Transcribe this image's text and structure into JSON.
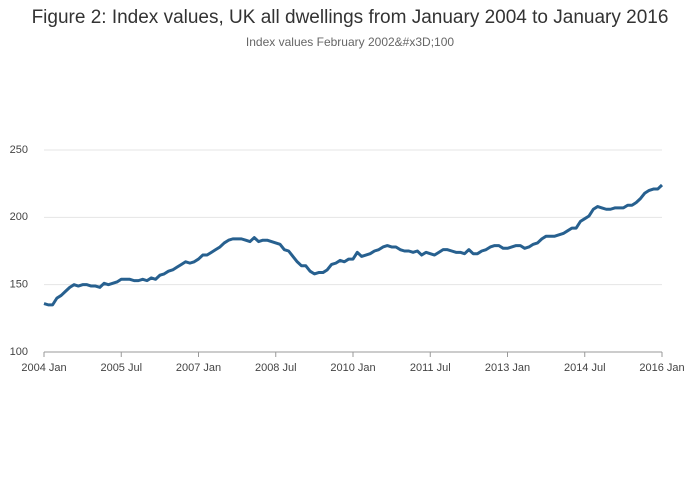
{
  "chart_data": {
    "type": "line",
    "title": "Figure 2: Index values, UK all dwellings from January 2004 to January 2016",
    "subtitle": "Index values February 2002&#x3D;100",
    "color": "#27608f",
    "x": [
      "2004-01",
      "2004-02",
      "2004-03",
      "2004-04",
      "2004-05",
      "2004-06",
      "2004-07",
      "2004-08",
      "2004-09",
      "2004-10",
      "2004-11",
      "2004-12",
      "2005-01",
      "2005-02",
      "2005-03",
      "2005-04",
      "2005-05",
      "2005-06",
      "2005-07",
      "2005-08",
      "2005-09",
      "2005-10",
      "2005-11",
      "2005-12",
      "2006-01",
      "2006-02",
      "2006-03",
      "2006-04",
      "2006-05",
      "2006-06",
      "2006-07",
      "2006-08",
      "2006-09",
      "2006-10",
      "2006-11",
      "2006-12",
      "2007-01",
      "2007-02",
      "2007-03",
      "2007-04",
      "2007-05",
      "2007-06",
      "2007-07",
      "2007-08",
      "2007-09",
      "2007-10",
      "2007-11",
      "2007-12",
      "2008-01",
      "2008-02",
      "2008-03",
      "2008-04",
      "2008-05",
      "2008-06",
      "2008-07",
      "2008-08",
      "2008-09",
      "2008-10",
      "2008-11",
      "2008-12",
      "2009-01",
      "2009-02",
      "2009-03",
      "2009-04",
      "2009-05",
      "2009-06",
      "2009-07",
      "2009-08",
      "2009-09",
      "2009-10",
      "2009-11",
      "2009-12",
      "2010-01",
      "2010-02",
      "2010-03",
      "2010-04",
      "2010-05",
      "2010-06",
      "2010-07",
      "2010-08",
      "2010-09",
      "2010-10",
      "2010-11",
      "2010-12",
      "2011-01",
      "2011-02",
      "2011-03",
      "2011-04",
      "2011-05",
      "2011-06",
      "2011-07",
      "2011-08",
      "2011-09",
      "2011-10",
      "2011-11",
      "2011-12",
      "2012-01",
      "2012-02",
      "2012-03",
      "2012-04",
      "2012-05",
      "2012-06",
      "2012-07",
      "2012-08",
      "2012-09",
      "2012-10",
      "2012-11",
      "2012-12",
      "2013-01",
      "2013-02",
      "2013-03",
      "2013-04",
      "2013-05",
      "2013-06",
      "2013-07",
      "2013-08",
      "2013-09",
      "2013-10",
      "2013-11",
      "2013-12",
      "2014-01",
      "2014-02",
      "2014-03",
      "2014-04",
      "2014-05",
      "2014-06",
      "2014-07",
      "2014-08",
      "2014-09",
      "2014-10",
      "2014-11",
      "2014-12",
      "2015-01",
      "2015-02",
      "2015-03",
      "2015-04",
      "2015-05",
      "2015-06",
      "2015-07",
      "2015-08",
      "2015-09",
      "2015-10",
      "2015-11",
      "2015-12",
      "2016-01"
    ],
    "values": [
      136,
      135,
      135,
      140,
      142,
      145,
      148,
      150,
      149,
      150,
      150,
      149,
      149,
      148,
      151,
      150,
      151,
      152,
      154,
      154,
      154,
      153,
      153,
      154,
      153,
      155,
      154,
      157,
      158,
      160,
      161,
      163,
      165,
      167,
      166,
      167,
      169,
      172,
      172,
      174,
      176,
      178,
      181,
      183,
      184,
      184,
      184,
      183,
      182,
      185,
      182,
      183,
      183,
      182,
      181,
      180,
      176,
      175,
      171,
      167,
      164,
      164,
      160,
      158,
      159,
      159,
      161,
      165,
      166,
      168,
      167,
      169,
      169,
      174,
      171,
      172,
      173,
      175,
      176,
      178,
      179,
      178,
      178,
      176,
      175,
      175,
      174,
      175,
      172,
      174,
      173,
      172,
      174,
      176,
      176,
      175,
      174,
      174,
      173,
      176,
      173,
      173,
      175,
      176,
      178,
      179,
      179,
      177,
      177,
      178,
      179,
      179,
      177,
      178,
      180,
      181,
      184,
      186,
      186,
      186,
      187,
      188,
      190,
      192,
      192,
      197,
      199,
      201,
      206,
      208,
      207,
      206,
      206,
      207,
      207,
      207,
      209,
      209,
      211,
      214,
      218,
      220,
      221,
      221,
      224
    ],
    "xlim": [
      "2004-01",
      "2016-01"
    ],
    "xticks": [
      {
        "value": "2004-01",
        "label": "2004 Jan"
      },
      {
        "value": "2005-07",
        "label": "2005 Jul"
      },
      {
        "value": "2007-01",
        "label": "2007 Jan"
      },
      {
        "value": "2008-07",
        "label": "2008 Jul"
      },
      {
        "value": "2010-01",
        "label": "2010 Jan"
      },
      {
        "value": "2011-07",
        "label": "2011 Jul"
      },
      {
        "value": "2013-01",
        "label": "2013 Jan"
      },
      {
        "value": "2014-07",
        "label": "2014 Jul"
      },
      {
        "value": "2016-01",
        "label": "2016 Jan"
      }
    ],
    "ylim": [
      100,
      250
    ],
    "yticks": [
      100,
      150,
      200,
      250
    ],
    "grid": true
  }
}
